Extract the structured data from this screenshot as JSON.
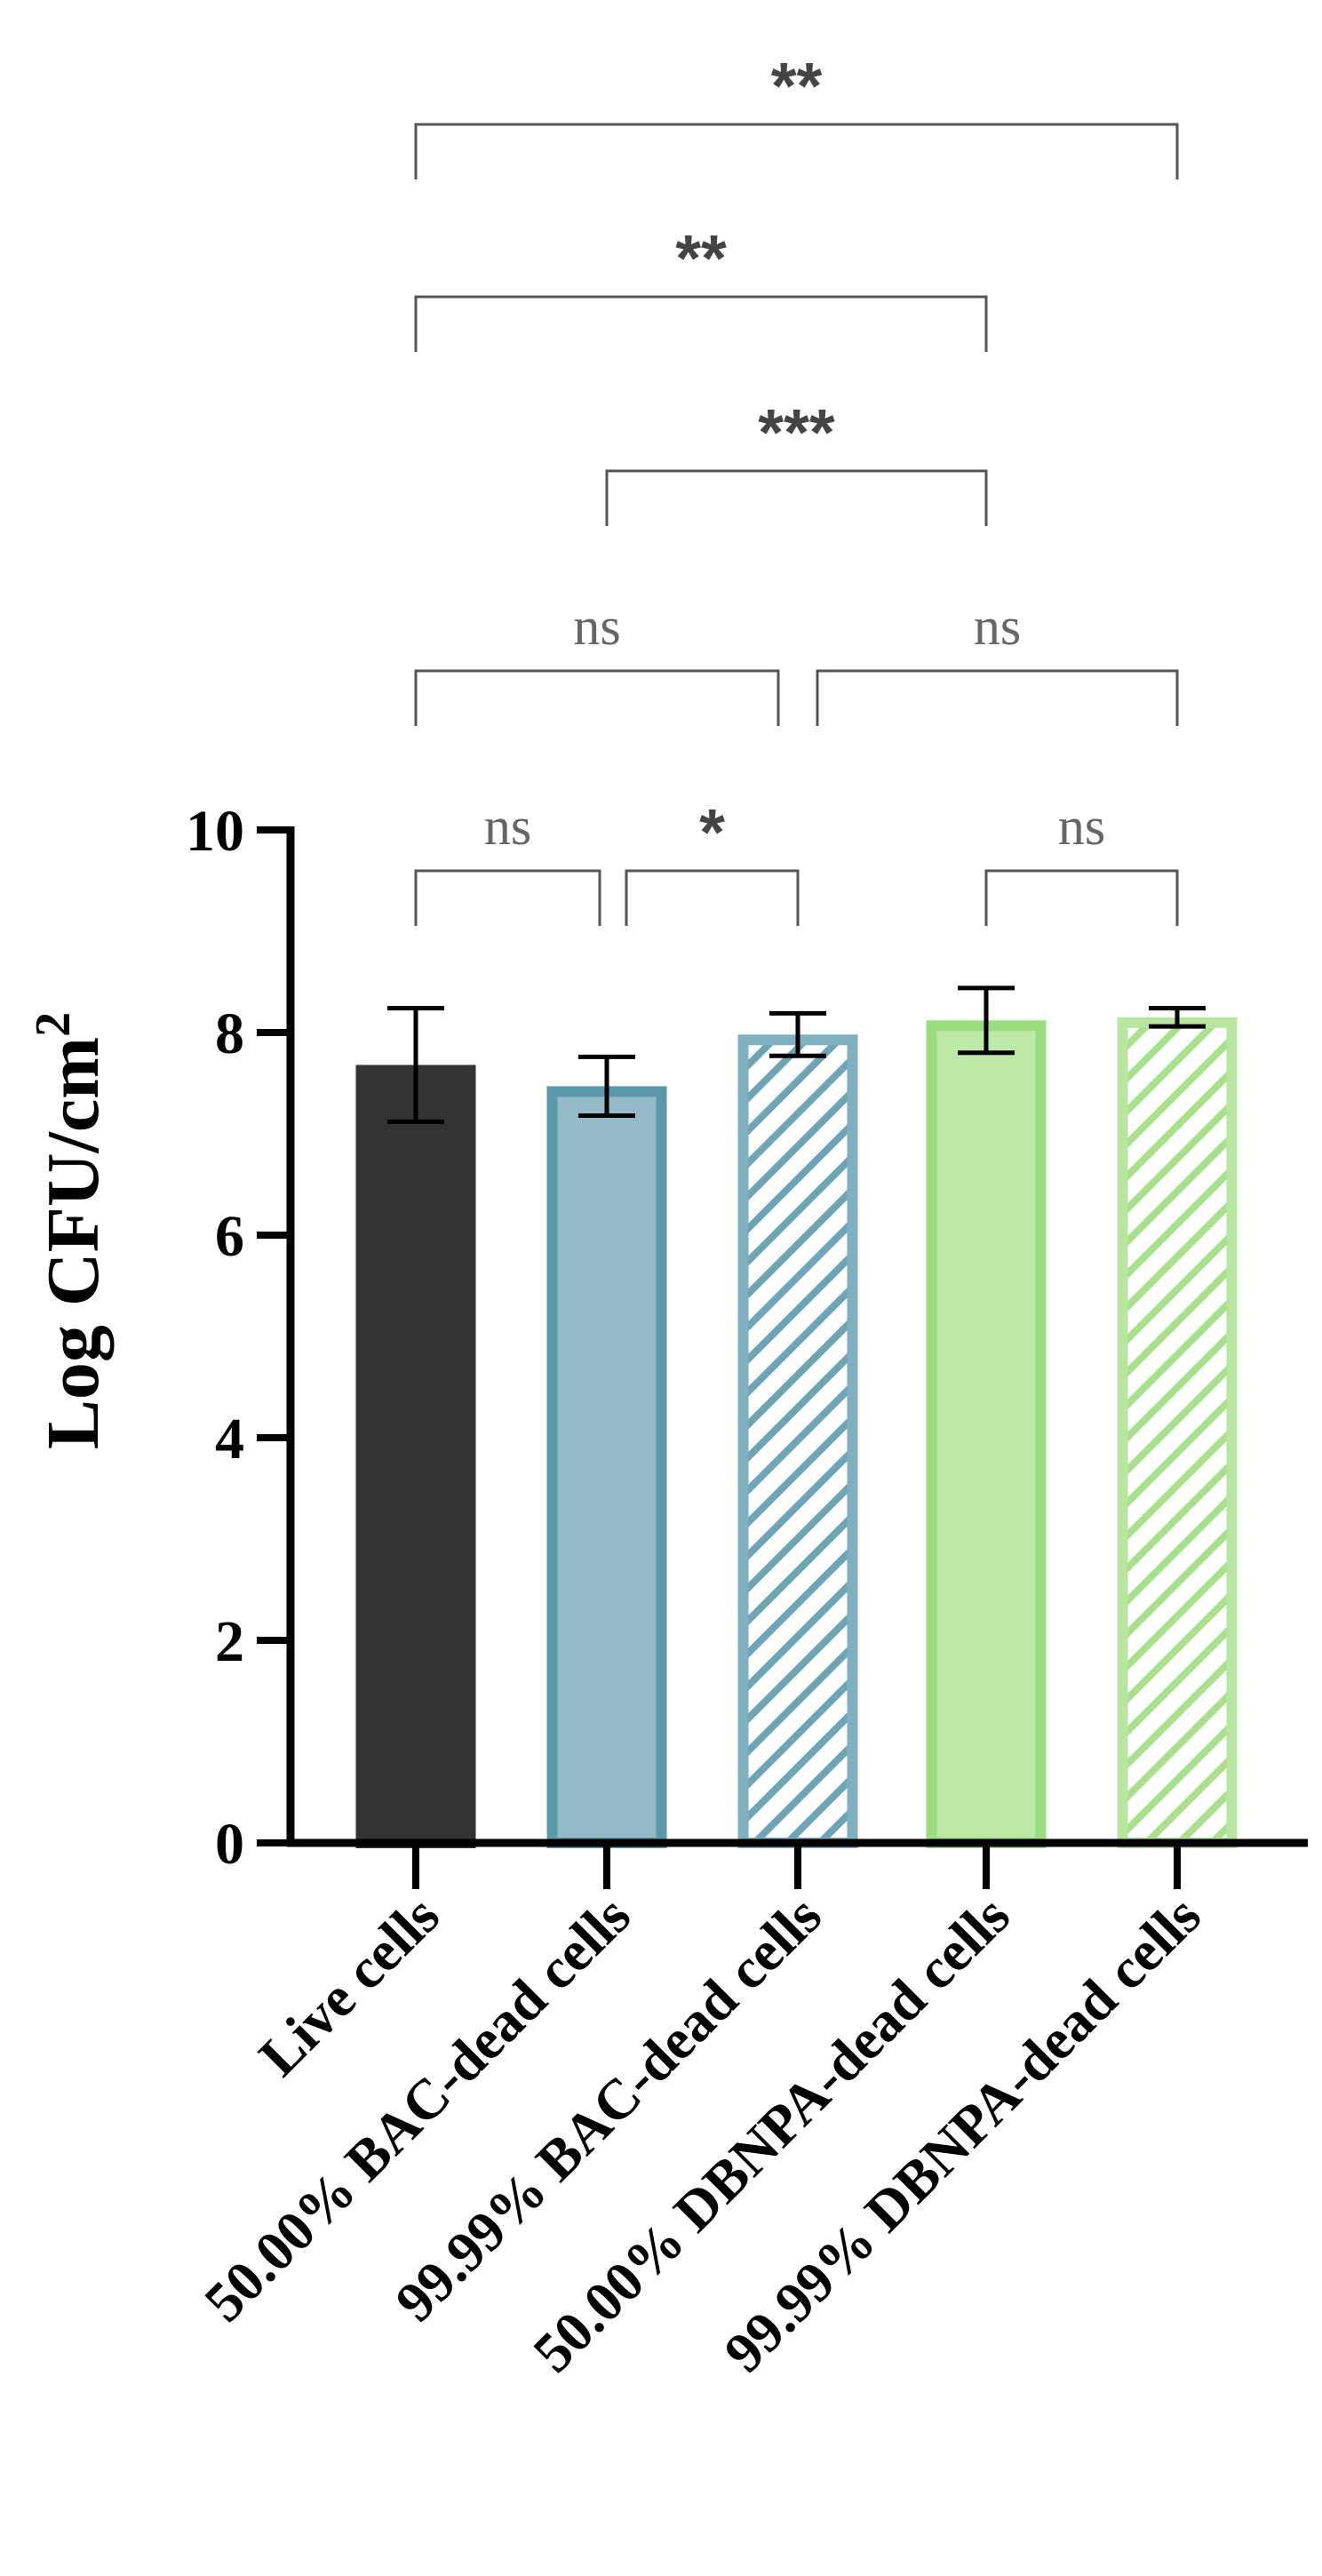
{
  "chart_data": {
    "type": "bar",
    "title": "",
    "xlabel": "",
    "ylabel": "Log CFU/cm",
    "ylabel_superscript": "2",
    "ylim": [
      0,
      10
    ],
    "yticks": [
      "0",
      "2",
      "4",
      "6",
      "8",
      "10"
    ],
    "grid": false,
    "categories": [
      "Live cells",
      "50.00% BAC-dead cells",
      "99.99% BAC-dead cells",
      "50.00% DBNPA-dead cells",
      "99.99% DBNPA-dead cells"
    ],
    "values": [
      7.68,
      7.47,
      7.98,
      8.12,
      8.15
    ],
    "errors": [
      0.56,
      0.29,
      0.21,
      0.32,
      0.09
    ],
    "bar_styles": [
      {
        "fill": "#333333",
        "stroke": "#333333",
        "hatch": false
      },
      {
        "fill": "#93BAC6",
        "stroke": "#5B98A9",
        "hatch": false
      },
      {
        "fill": "#ffffff",
        "stroke": "#7FB0BF",
        "hatch": true,
        "hatch_color": "#6EA5B6"
      },
      {
        "fill": "#BDE8A8",
        "stroke": "#9ADD7E",
        "hatch": false
      },
      {
        "fill": "#ffffff",
        "stroke": "#B8E6A0",
        "hatch": true,
        "hatch_color": "#A8E08C"
      }
    ],
    "comparisons": [
      {
        "from": 0,
        "to": 4,
        "label": "**"
      },
      {
        "from": 0,
        "to": 3,
        "label": "**"
      },
      {
        "from": 1,
        "to": 3,
        "label": "***"
      },
      {
        "from": 0,
        "to": 2,
        "label": "ns"
      },
      {
        "from": 2,
        "to": 4,
        "label": "ns"
      },
      {
        "from": 0,
        "to": 1,
        "label": "ns"
      },
      {
        "from": 1,
        "to": 2,
        "label": "*"
      },
      {
        "from": 3,
        "to": 4,
        "label": "ns"
      }
    ]
  }
}
